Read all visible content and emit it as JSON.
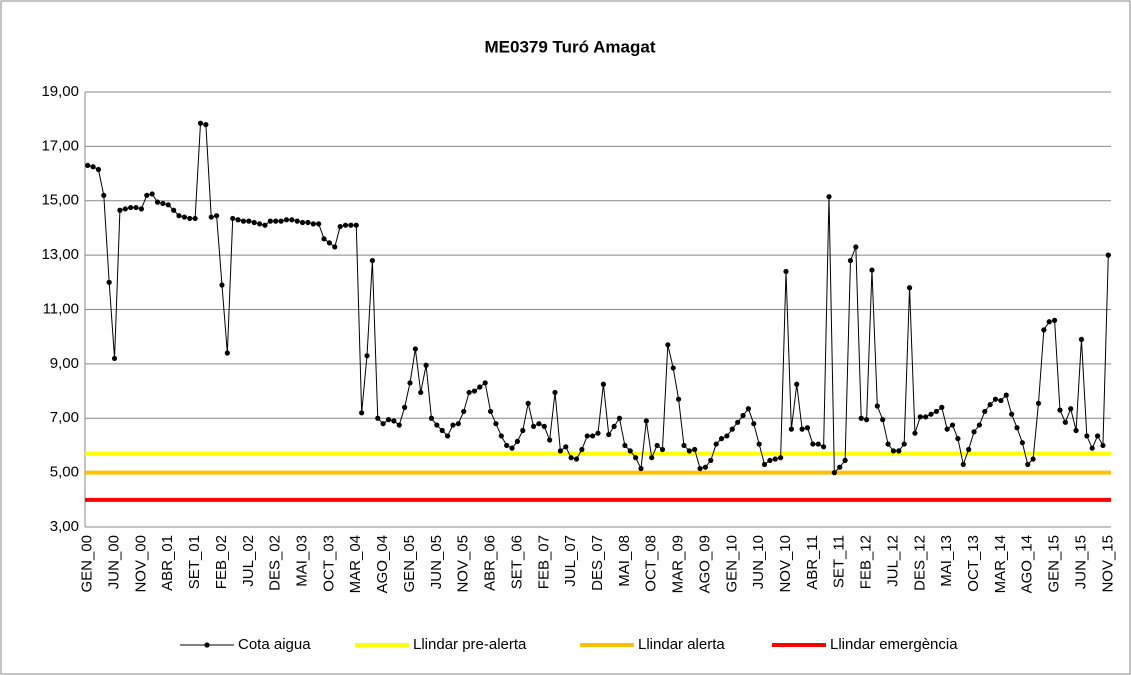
{
  "chart_data": {
    "type": "line",
    "title": "ME0379 Turó Amagat",
    "categories": [
      "GEN_00",
      null,
      null,
      null,
      null,
      "JUN_00",
      null,
      null,
      null,
      null,
      "NOV_00",
      null,
      null,
      null,
      null,
      "ABR_01",
      null,
      null,
      null,
      null,
      "SET_01",
      null,
      null,
      null,
      null,
      "FEB_02",
      null,
      null,
      null,
      null,
      "JUL_02",
      null,
      null,
      null,
      null,
      "DES_02",
      null,
      null,
      null,
      null,
      "MAI_03",
      null,
      null,
      null,
      null,
      "OCT_03",
      null,
      null,
      null,
      null,
      "MAR_04",
      null,
      null,
      null,
      null,
      "AGO_04",
      null,
      null,
      null,
      null,
      "GEN_05",
      null,
      null,
      null,
      null,
      "JUN_05",
      null,
      null,
      null,
      null,
      "NOV_05",
      null,
      null,
      null,
      null,
      "ABR_06",
      null,
      null,
      null,
      null,
      "SET_06",
      null,
      null,
      null,
      null,
      "FEB_07",
      null,
      null,
      null,
      null,
      "JUL_07",
      null,
      null,
      null,
      null,
      "DES_07",
      null,
      null,
      null,
      null,
      "MAI_08",
      null,
      null,
      null,
      null,
      "OCT_08",
      null,
      null,
      null,
      null,
      "MAR_09",
      null,
      null,
      null,
      null,
      "AGO_09",
      null,
      null,
      null,
      null,
      "GEN_10",
      null,
      null,
      null,
      null,
      "JUN_10",
      null,
      null,
      null,
      null,
      "NOV_10",
      null,
      null,
      null,
      null,
      "ABR_11",
      null,
      null,
      null,
      null,
      "SET_11",
      null,
      null,
      null,
      null,
      "FEB_12",
      null,
      null,
      null,
      null,
      "JUL_12",
      null,
      null,
      null,
      null,
      "DES_12",
      null,
      null,
      null,
      null,
      "MAI_13",
      null,
      null,
      null,
      null,
      "OCT_13",
      null,
      null,
      null,
      null,
      "MAR_14",
      null,
      null,
      null,
      null,
      "AGO_14",
      null,
      null,
      null,
      null,
      "GEN_15",
      null,
      null,
      null,
      null,
      "JUN_15",
      null,
      null,
      null,
      null,
      "NOV_15"
    ],
    "series": [
      {
        "name": "Cota aigua",
        "color": "#000000",
        "values": [
          16.3,
          16.25,
          16.15,
          15.2,
          12.0,
          9.2,
          14.65,
          14.7,
          14.75,
          14.75,
          14.7,
          15.2,
          15.25,
          14.95,
          14.9,
          14.85,
          14.65,
          14.45,
          14.4,
          14.35,
          14.35,
          17.85,
          17.8,
          14.4,
          14.45,
          11.9,
          9.4,
          14.35,
          14.3,
          14.25,
          14.25,
          14.2,
          14.15,
          14.1,
          14.25,
          14.25,
          14.25,
          14.3,
          14.3,
          14.25,
          14.2,
          14.2,
          14.15,
          14.15,
          13.6,
          13.45,
          13.3,
          14.05,
          14.1,
          14.1,
          14.1,
          7.2,
          9.3,
          12.8,
          7.0,
          6.8,
          6.95,
          6.9,
          6.75,
          7.4,
          8.3,
          9.55,
          7.95,
          8.95,
          7.0,
          6.75,
          6.55,
          6.35,
          6.75,
          6.8,
          7.25,
          7.95,
          8.0,
          8.15,
          8.3,
          7.25,
          6.8,
          6.35,
          6.0,
          5.9,
          6.15,
          6.55,
          7.55,
          6.7,
          6.8,
          6.7,
          6.2,
          7.95,
          5.8,
          5.95,
          5.55,
          5.5,
          5.85,
          6.35,
          6.35,
          6.45,
          8.25,
          6.4,
          6.7,
          7.0,
          6.0,
          5.8,
          5.55,
          5.15,
          6.9,
          5.55,
          6.0,
          5.85,
          9.7,
          8.85,
          7.7,
          6.0,
          5.8,
          5.85,
          5.15,
          5.2,
          5.45,
          6.05,
          6.25,
          6.35,
          6.6,
          6.85,
          7.1,
          7.35,
          6.8,
          6.05,
          5.3,
          5.45,
          5.5,
          5.55,
          12.4,
          6.6,
          8.25,
          6.6,
          6.65,
          6.05,
          6.05,
          5.95,
          15.15,
          5.0,
          5.2,
          5.45,
          12.8,
          13.3,
          7.0,
          6.95,
          12.45,
          7.45,
          6.95,
          6.05,
          5.8,
          5.8,
          6.05,
          11.8,
          6.45,
          7.05,
          7.05,
          7.15,
          7.25,
          7.4,
          6.6,
          6.75,
          6.25,
          5.3,
          5.85,
          6.5,
          6.75,
          7.25,
          7.5,
          7.7,
          7.65,
          7.85,
          7.15,
          6.65,
          6.1,
          5.3,
          5.5,
          7.55,
          10.25,
          10.55,
          10.6,
          7.3,
          6.85,
          7.35,
          6.55,
          9.9,
          6.35,
          5.9,
          6.35,
          6.0,
          13.0
        ]
      }
    ],
    "thresholds": [
      {
        "name": "Llindar pre-alerta",
        "color": "#ffff00",
        "value": 5.7
      },
      {
        "name": "Llindar alerta",
        "color": "#ffc000",
        "value": 5.0
      },
      {
        "name": "Llindar emergència",
        "color": "#ff0000",
        "value": 4.0
      }
    ],
    "ylim": [
      3,
      19
    ],
    "yticks": [
      {
        "value": 3,
        "label": "3,00"
      },
      {
        "value": 5,
        "label": "5,00"
      },
      {
        "value": 7,
        "label": "7,00"
      },
      {
        "value": 9,
        "label": "9,00"
      },
      {
        "value": 11,
        "label": "11,00"
      },
      {
        "value": 13,
        "label": "13,00"
      },
      {
        "value": 15,
        "label": "15,00"
      },
      {
        "value": 17,
        "label": "17,00"
      },
      {
        "value": 19,
        "label": "19,00"
      }
    ],
    "grid": true,
    "legend": "bottom"
  }
}
